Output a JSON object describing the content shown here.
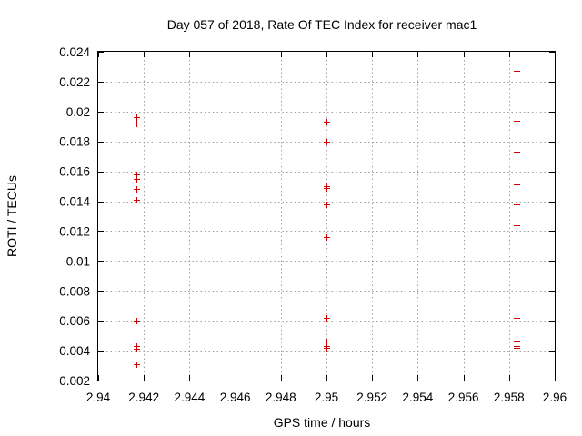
{
  "chart_data": {
    "type": "scatter",
    "title": "Day 057 of 2018, Rate Of TEC Index for receiver mac1",
    "xlabel": "GPS time / hours",
    "ylabel": "ROTI / TECUs",
    "xlim": [
      2.94,
      2.96
    ],
    "ylim": [
      0.002,
      0.024
    ],
    "xticks": [
      2.94,
      2.942,
      2.944,
      2.946,
      2.948,
      2.95,
      2.952,
      2.954,
      2.956,
      2.958,
      2.96
    ],
    "xtick_labels": [
      "2.94",
      "2.942",
      "2.944",
      "2.946",
      "2.948",
      "2.95",
      "2.952",
      "2.954",
      "2.956",
      "2.958",
      "2.96"
    ],
    "yticks": [
      0.002,
      0.004,
      0.006,
      0.008,
      0.01,
      0.012,
      0.014,
      0.016,
      0.018,
      0.02,
      0.022,
      0.024
    ],
    "ytick_labels": [
      "0.002",
      "0.004",
      "0.006",
      "0.008",
      "0.01",
      "0.012",
      "0.014",
      "0.016",
      "0.018",
      "0.02",
      "0.022",
      "0.024"
    ],
    "grid": true,
    "marker": "+",
    "marker_color": "#cc0000",
    "series": [
      {
        "name": "ROTI",
        "points": [
          {
            "x": 2.94167,
            "y": 0.0196
          },
          {
            "x": 2.94167,
            "y": 0.0192
          },
          {
            "x": 2.94167,
            "y": 0.0158
          },
          {
            "x": 2.94167,
            "y": 0.0155
          },
          {
            "x": 2.94167,
            "y": 0.0148
          },
          {
            "x": 2.94167,
            "y": 0.0141
          },
          {
            "x": 2.94167,
            "y": 0.006
          },
          {
            "x": 2.94167,
            "y": 0.0043
          },
          {
            "x": 2.94167,
            "y": 0.0041
          },
          {
            "x": 2.94167,
            "y": 0.0031
          },
          {
            "x": 2.95,
            "y": 0.0193
          },
          {
            "x": 2.95,
            "y": 0.018
          },
          {
            "x": 2.95,
            "y": 0.015
          },
          {
            "x": 2.95,
            "y": 0.0149
          },
          {
            "x": 2.95,
            "y": 0.0138
          },
          {
            "x": 2.95,
            "y": 0.0116
          },
          {
            "x": 2.95,
            "y": 0.0062
          },
          {
            "x": 2.95,
            "y": 0.0046
          },
          {
            "x": 2.95,
            "y": 0.0043
          },
          {
            "x": 2.95,
            "y": 0.0042
          },
          {
            "x": 2.95833,
            "y": 0.0227
          },
          {
            "x": 2.95833,
            "y": 0.0194
          },
          {
            "x": 2.95833,
            "y": 0.0173
          },
          {
            "x": 2.95833,
            "y": 0.0151
          },
          {
            "x": 2.95833,
            "y": 0.0138
          },
          {
            "x": 2.95833,
            "y": 0.0124
          },
          {
            "x": 2.95833,
            "y": 0.0062
          },
          {
            "x": 2.95833,
            "y": 0.0047
          },
          {
            "x": 2.95833,
            "y": 0.0043
          },
          {
            "x": 2.95833,
            "y": 0.0042
          }
        ]
      }
    ]
  }
}
